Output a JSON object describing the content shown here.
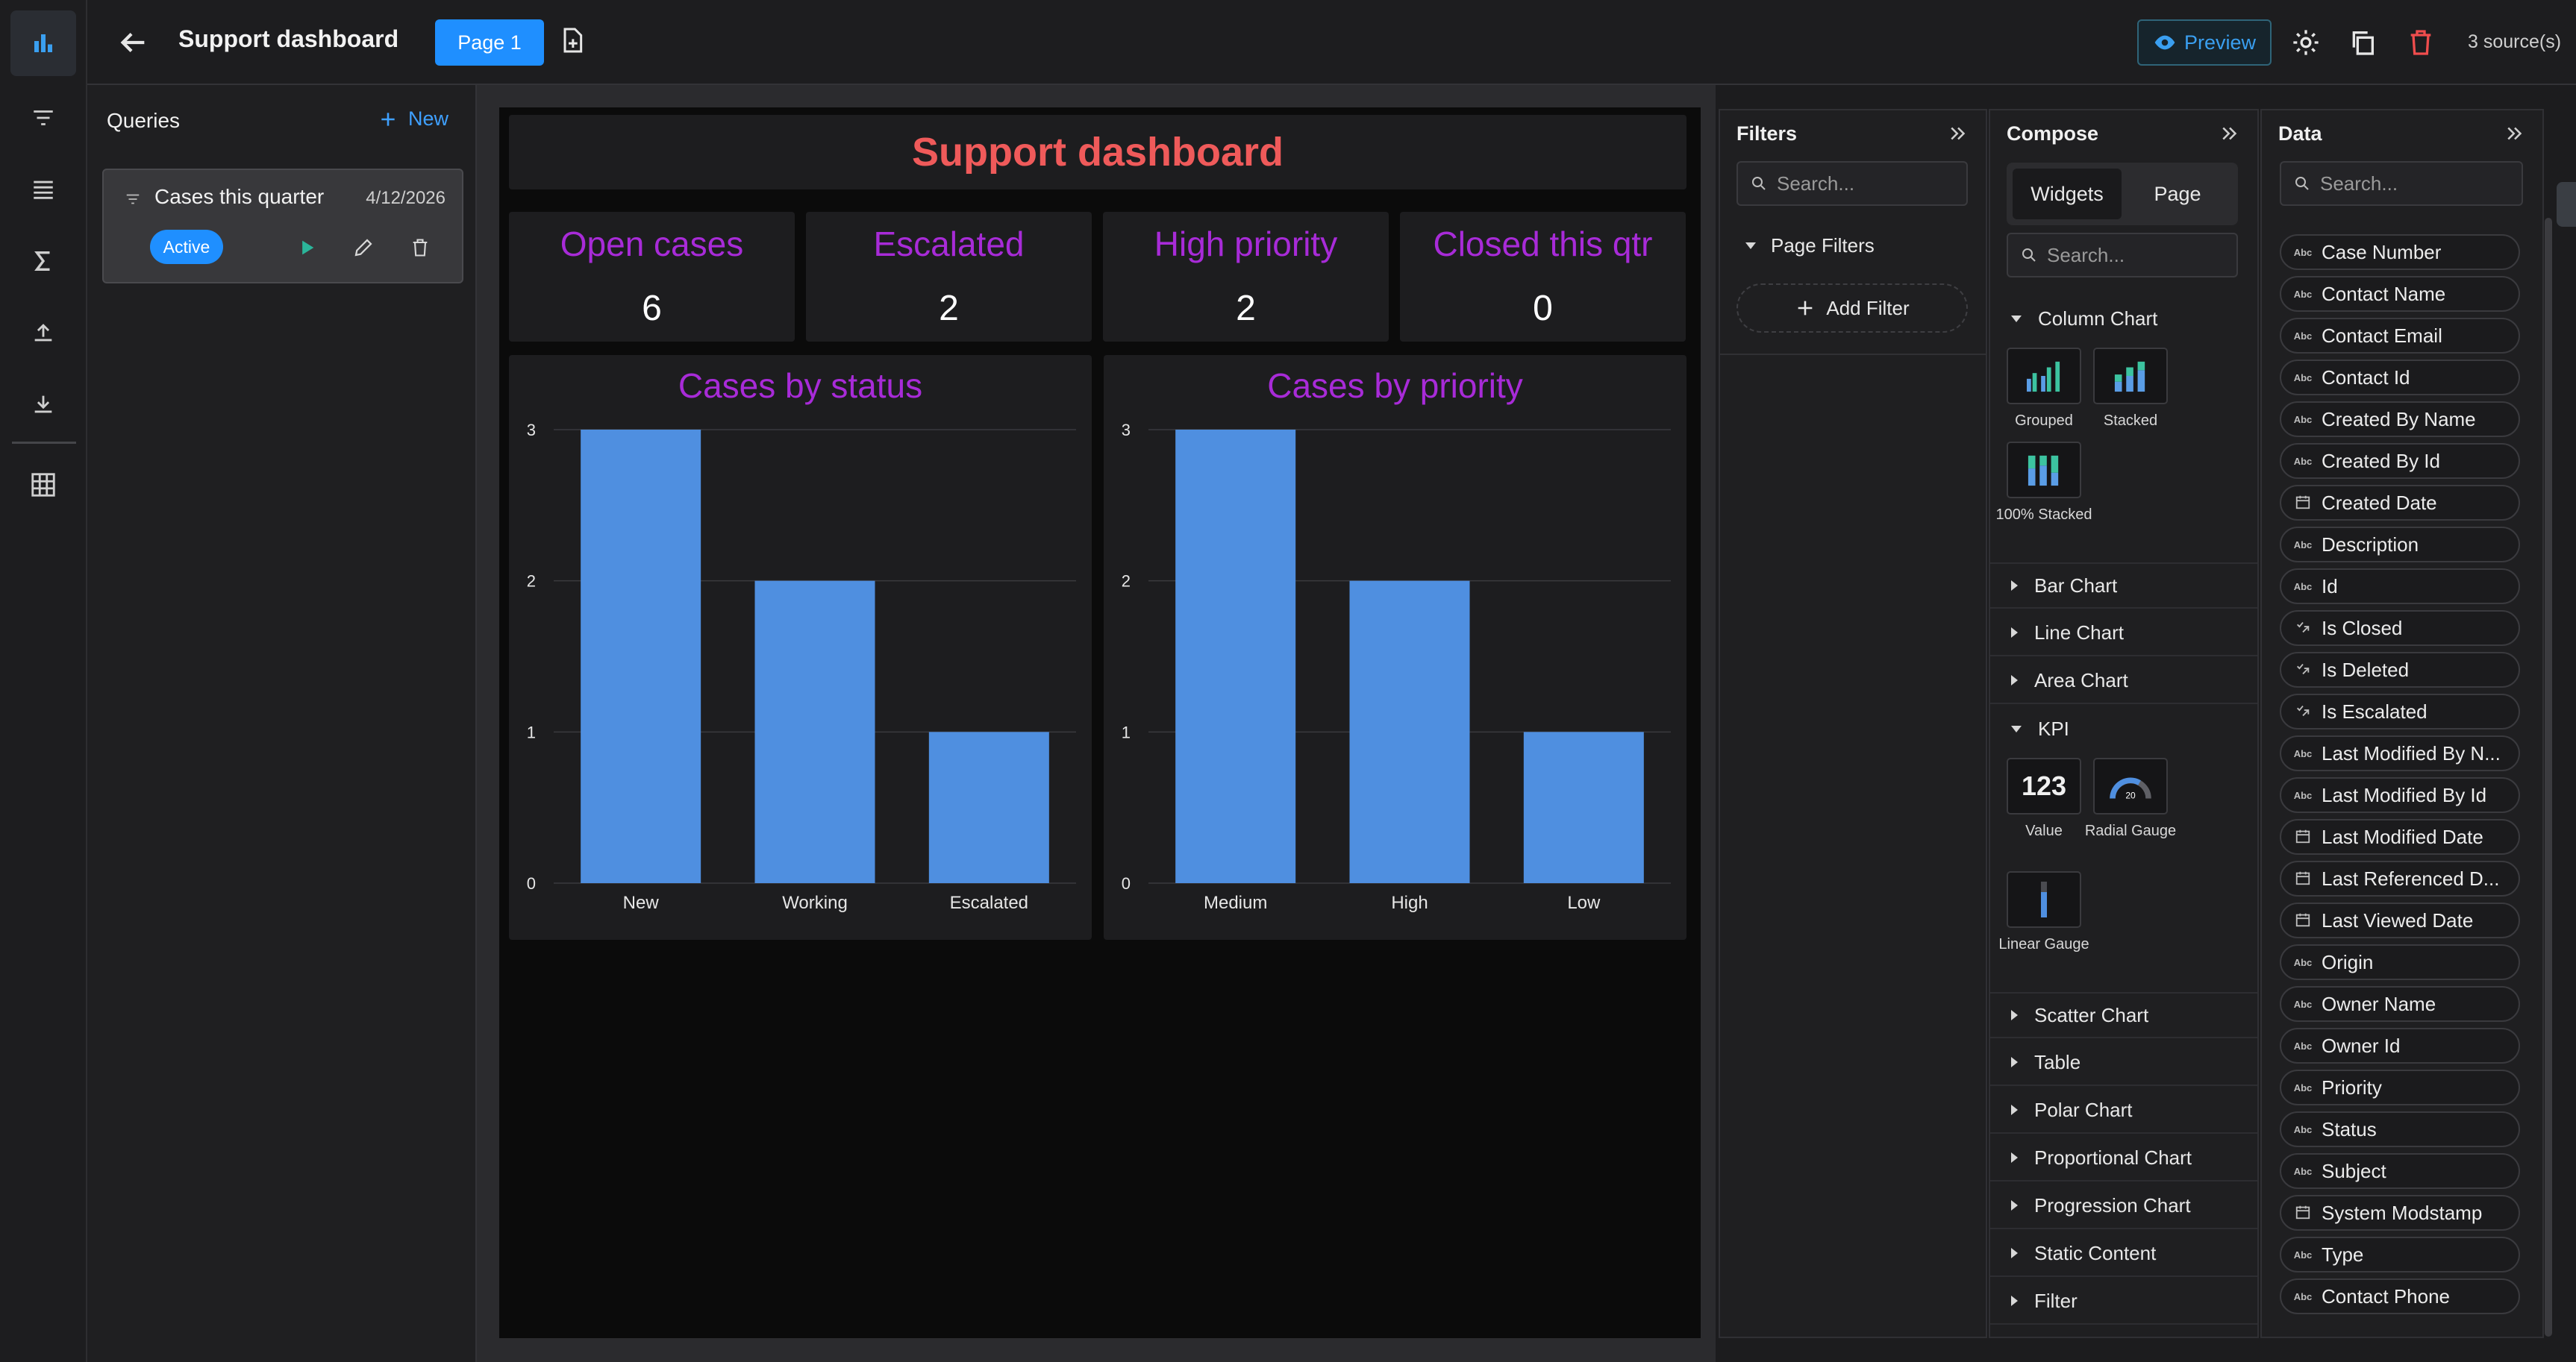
{
  "app": {
    "title": "Support dashboard",
    "page_tab": "Page 1",
    "preview_label": "Preview",
    "sources": "3 source(s)",
    "colors": {
      "accent": "#1f8fff",
      "kpi_label": "#a82bd8",
      "dash_title": "#ef5a5a",
      "bar": "#4f8fe0"
    }
  },
  "rail": {
    "icons": [
      "bar-chart-icon",
      "filter-icon",
      "list-icon",
      "sigma-icon",
      "upload-icon",
      "download-icon",
      "table-grid-icon"
    ]
  },
  "queries": {
    "heading": "Queries",
    "new_label": "New",
    "items": [
      {
        "name": "Cases this quarter",
        "date": "4/12/2026",
        "status": "Active"
      }
    ]
  },
  "dashboard": {
    "title": "Support dashboard",
    "kpis": [
      {
        "label": "Open cases",
        "value": "6"
      },
      {
        "label": "Escalated",
        "value": "2"
      },
      {
        "label": "High priority",
        "value": "2"
      },
      {
        "label": "Closed this qtr",
        "value": "0"
      }
    ]
  },
  "chart_data": [
    {
      "type": "bar",
      "title": "Cases by status",
      "categories": [
        "New",
        "Working",
        "Escalated"
      ],
      "values": [
        3,
        2,
        1
      ],
      "ylim": [
        0,
        3
      ],
      "yticks": [
        0,
        1,
        2,
        3
      ],
      "grid": true
    },
    {
      "type": "bar",
      "title": "Cases by priority",
      "categories": [
        "Medium",
        "High",
        "Low"
      ],
      "values": [
        3,
        2,
        1
      ],
      "ylim": [
        0,
        3
      ],
      "yticks": [
        0,
        1,
        2,
        3
      ],
      "grid": true
    }
  ],
  "filters": {
    "heading": "Filters",
    "search_placeholder": "Search...",
    "page_filters": "Page Filters",
    "add_filter": "Add Filter"
  },
  "compose": {
    "heading": "Compose",
    "tabs": [
      "Widgets",
      "Page"
    ],
    "search_placeholder": "Search...",
    "sections": {
      "column_chart": "Column Chart",
      "bar_chart": "Bar Chart",
      "line_chart": "Line Chart",
      "area_chart": "Area Chart",
      "kpi": "KPI",
      "scatter_chart": "Scatter Chart",
      "table": "Table",
      "polar_chart": "Polar Chart",
      "proportional_chart": "Proportional Chart",
      "progression_chart": "Progression Chart",
      "static_content": "Static Content",
      "filter": "Filter"
    },
    "column_widgets": [
      "Grouped",
      "Stacked",
      "100% Stacked"
    ],
    "kpi_widgets": [
      "Value",
      "Radial Gauge",
      "Linear Gauge"
    ],
    "kpi_value_sample": "123",
    "gauge_sample": "20"
  },
  "data": {
    "heading": "Data",
    "search_placeholder": "Search...",
    "fields": [
      {
        "name": "Case Number",
        "type": "text"
      },
      {
        "name": "Contact Name",
        "type": "text"
      },
      {
        "name": "Contact Email",
        "type": "text"
      },
      {
        "name": "Contact Id",
        "type": "text"
      },
      {
        "name": "Created By Name",
        "type": "text"
      },
      {
        "name": "Created By Id",
        "type": "text"
      },
      {
        "name": "Created Date",
        "type": "date"
      },
      {
        "name": "Description",
        "type": "text"
      },
      {
        "name": "Id",
        "type": "text"
      },
      {
        "name": "Is Closed",
        "type": "bool"
      },
      {
        "name": "Is Deleted",
        "type": "bool"
      },
      {
        "name": "Is Escalated",
        "type": "bool"
      },
      {
        "name": "Last Modified By N...",
        "type": "text"
      },
      {
        "name": "Last Modified By Id",
        "type": "text"
      },
      {
        "name": "Last Modified Date",
        "type": "date"
      },
      {
        "name": "Last Referenced D...",
        "type": "date"
      },
      {
        "name": "Last Viewed Date",
        "type": "date"
      },
      {
        "name": "Origin",
        "type": "text"
      },
      {
        "name": "Owner Name",
        "type": "text"
      },
      {
        "name": "Owner Id",
        "type": "text"
      },
      {
        "name": "Priority",
        "type": "text"
      },
      {
        "name": "Status",
        "type": "text"
      },
      {
        "name": "Subject",
        "type": "text"
      },
      {
        "name": "System Modstamp",
        "type": "date"
      },
      {
        "name": "Type",
        "type": "text"
      },
      {
        "name": "Contact Phone",
        "type": "text"
      }
    ],
    "type_badge_text": "Abc"
  }
}
